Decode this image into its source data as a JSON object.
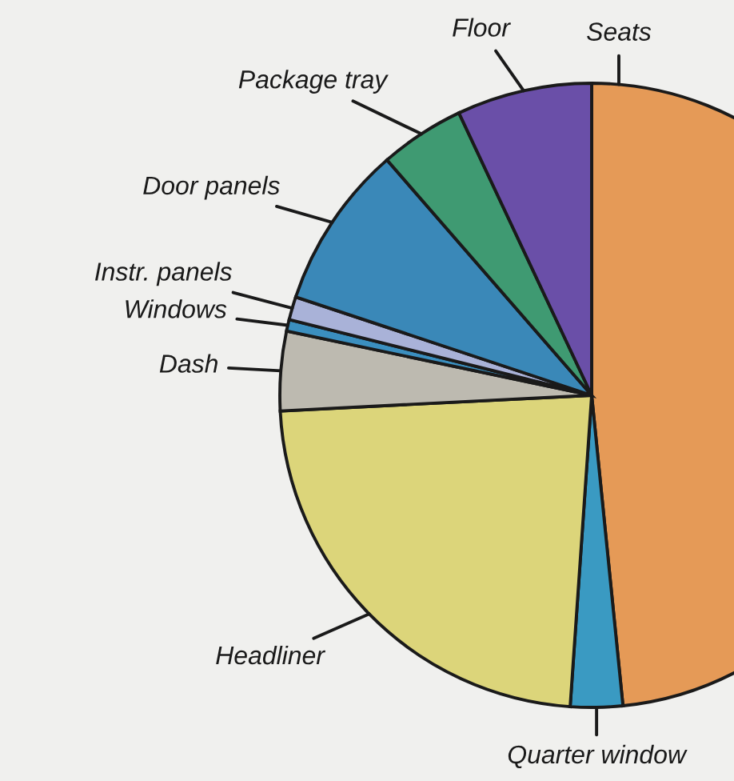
{
  "chart_data": {
    "type": "pie",
    "categories": [
      "Seats",
      "Quarter window",
      "Headliner",
      "Dash",
      "Windows",
      "Instr. panels",
      "Door panels",
      "Package tray",
      "Floor"
    ],
    "values": [
      48.4,
      2.7,
      23.1,
      4.1,
      0.6,
      1.2,
      8.5,
      4.4,
      7.0
    ],
    "colors": [
      "#e59a57",
      "#3a9ac2",
      "#dcd57a",
      "#bdbab0",
      "#3b8fbf",
      "#a9b2d8",
      "#3a88b8",
      "#3f9a72",
      "#6a4fa8"
    ]
  }
}
